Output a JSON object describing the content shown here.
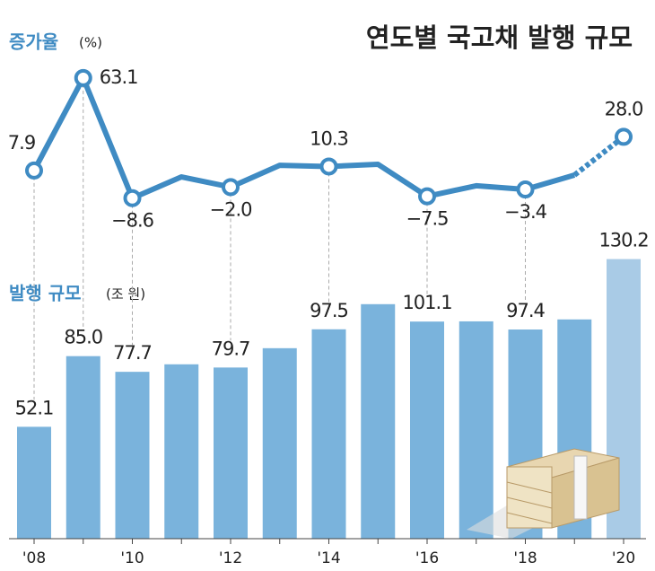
{
  "chart_data": {
    "type": "bar",
    "title": "연도별 국고채 발행 규모",
    "categories": [
      "'08",
      null,
      "'10",
      null,
      "'12",
      null,
      "'14",
      null,
      "'16",
      null,
      "'18",
      null,
      "'20"
    ],
    "ylim": [
      0,
      250
    ],
    "y2lim": [
      -20,
      70
    ],
    "series": [
      {
        "name": "발행 규모",
        "unit": "(조 원)",
        "type": "bar",
        "color": "#7ab3dc",
        "last_color": "#a9cbe6",
        "values": [
          52.1,
          85.0,
          77.7,
          81.2,
          79.7,
          88.7,
          97.5,
          109.2,
          101.1,
          101.2,
          97.4,
          102.1,
          130.2
        ],
        "value_labels": [
          "52.1",
          "85.0",
          "77.7",
          null,
          "79.7",
          null,
          "97.5",
          null,
          "101.1",
          null,
          "97.4",
          null,
          "130.2"
        ]
      },
      {
        "name": "증가율",
        "unit": "(%)",
        "type": "line",
        "axis": "y2",
        "color": "#3f8bc3",
        "last_segment_style": "dashed",
        "values": [
          7.9,
          63.1,
          -8.6,
          4.1,
          -2.0,
          11.0,
          10.3,
          11.6,
          -7.5,
          -1.2,
          -3.4,
          5.2,
          28.0
        ],
        "value_labels": [
          "7.9",
          "63.1",
          "−8.6",
          null,
          "−2.0",
          null,
          "10.3",
          null,
          "−7.5",
          null,
          "−3.4",
          null,
          "28.0"
        ]
      }
    ]
  }
}
